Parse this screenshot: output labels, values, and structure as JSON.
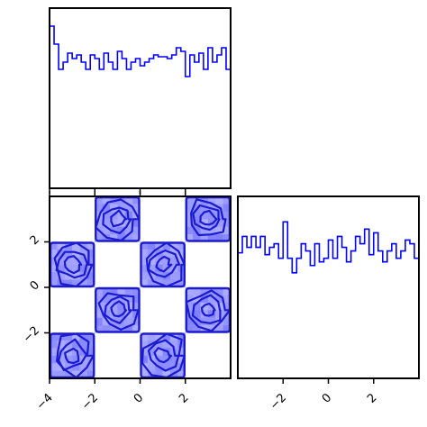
{
  "chart_data": [
    {
      "panel": "top-left",
      "type": "histogram",
      "title": "",
      "xlabel": "",
      "ylabel": "",
      "xlim": [
        -4,
        4
      ],
      "ylim": [
        0,
        1
      ],
      "xticks": [
        -4,
        -2,
        0,
        2
      ],
      "show_x_ticklabels": false,
      "color": "#0000ff",
      "bins": 40,
      "values": [
        0.9,
        0.8,
        0.66,
        0.7,
        0.75,
        0.72,
        0.74,
        0.7,
        0.66,
        0.74,
        0.72,
        0.66,
        0.75,
        0.7,
        0.66,
        0.76,
        0.72,
        0.66,
        0.7,
        0.72,
        0.68,
        0.7,
        0.72,
        0.74,
        0.73,
        0.73,
        0.72,
        0.74,
        0.78,
        0.76,
        0.62,
        0.74,
        0.7,
        0.75,
        0.66,
        0.78,
        0.7,
        0.74,
        0.78,
        0.66
      ]
    },
    {
      "panel": "bottom-left",
      "type": "heatmap",
      "title": "",
      "xlabel": "",
      "ylabel": "",
      "xlim": [
        -4,
        4
      ],
      "ylim": [
        -4,
        4
      ],
      "xticks": [
        -4,
        -2,
        0,
        2
      ],
      "yticks": [
        -2,
        0,
        2
      ],
      "xticklabels": [
        "−4",
        "−2",
        "0",
        "2"
      ],
      "yticklabels": [
        "−2",
        "0",
        "2"
      ],
      "color": "#0000ff",
      "grid": false,
      "pattern": "checkerboard",
      "filled_cells": [
        {
          "x": [
            -2,
            0
          ],
          "y": [
            2,
            4
          ]
        },
        {
          "x": [
            2,
            4
          ],
          "y": [
            2,
            4
          ]
        },
        {
          "x": [
            -4,
            -2
          ],
          "y": [
            0,
            2
          ]
        },
        {
          "x": [
            0,
            2
          ],
          "y": [
            0,
            2
          ]
        },
        {
          "x": [
            -2,
            0
          ],
          "y": [
            -2,
            0
          ]
        },
        {
          "x": [
            2,
            4
          ],
          "y": [
            -2,
            0
          ]
        },
        {
          "x": [
            -4,
            -2
          ],
          "y": [
            -4,
            -2
          ]
        },
        {
          "x": [
            0,
            2
          ],
          "y": [
            -4,
            -2
          ]
        }
      ]
    },
    {
      "panel": "bottom-right",
      "type": "histogram",
      "title": "",
      "xlabel": "",
      "ylabel": "",
      "xlim": [
        -4,
        4
      ],
      "ylim": [
        0,
        1
      ],
      "xticks": [
        -2,
        0,
        2
      ],
      "xticklabels": [
        "−2",
        "0",
        "2"
      ],
      "color": "#0000ff",
      "bins": 40,
      "values": [
        0.69,
        0.78,
        0.72,
        0.78,
        0.72,
        0.78,
        0.68,
        0.72,
        0.74,
        0.66,
        0.86,
        0.66,
        0.58,
        0.66,
        0.74,
        0.7,
        0.62,
        0.74,
        0.64,
        0.66,
        0.76,
        0.66,
        0.78,
        0.72,
        0.64,
        0.7,
        0.78,
        0.74,
        0.82,
        0.68,
        0.8,
        0.7,
        0.64,
        0.7,
        0.74,
        0.66,
        0.7,
        0.76,
        0.74,
        0.66
      ]
    }
  ]
}
